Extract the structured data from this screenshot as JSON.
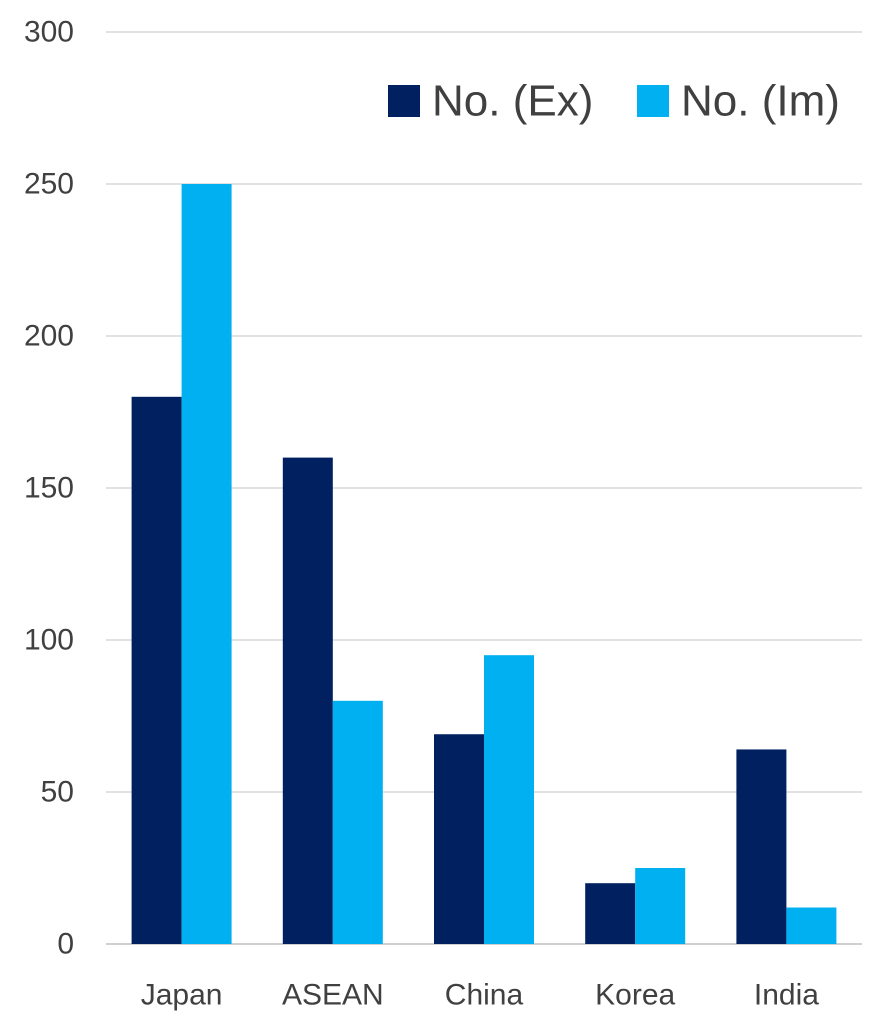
{
  "chart_data": {
    "type": "bar",
    "title": "",
    "xlabel": "",
    "ylabel": "",
    "categories": [
      "Japan",
      "ASEAN",
      "China",
      "Korea",
      "India"
    ],
    "series": [
      {
        "name": "No. (Ex)",
        "color": "#002060",
        "values": [
          180,
          160,
          69,
          20,
          64
        ]
      },
      {
        "name": "No. (Im)",
        "color": "#00b0f0",
        "values": [
          250,
          80,
          95,
          25,
          12
        ]
      }
    ],
    "ylim": [
      0,
      300
    ],
    "yticks": [
      "0",
      "50",
      "100",
      "150",
      "200",
      "250",
      "300"
    ],
    "grid": true,
    "legend_position": "top-right"
  }
}
